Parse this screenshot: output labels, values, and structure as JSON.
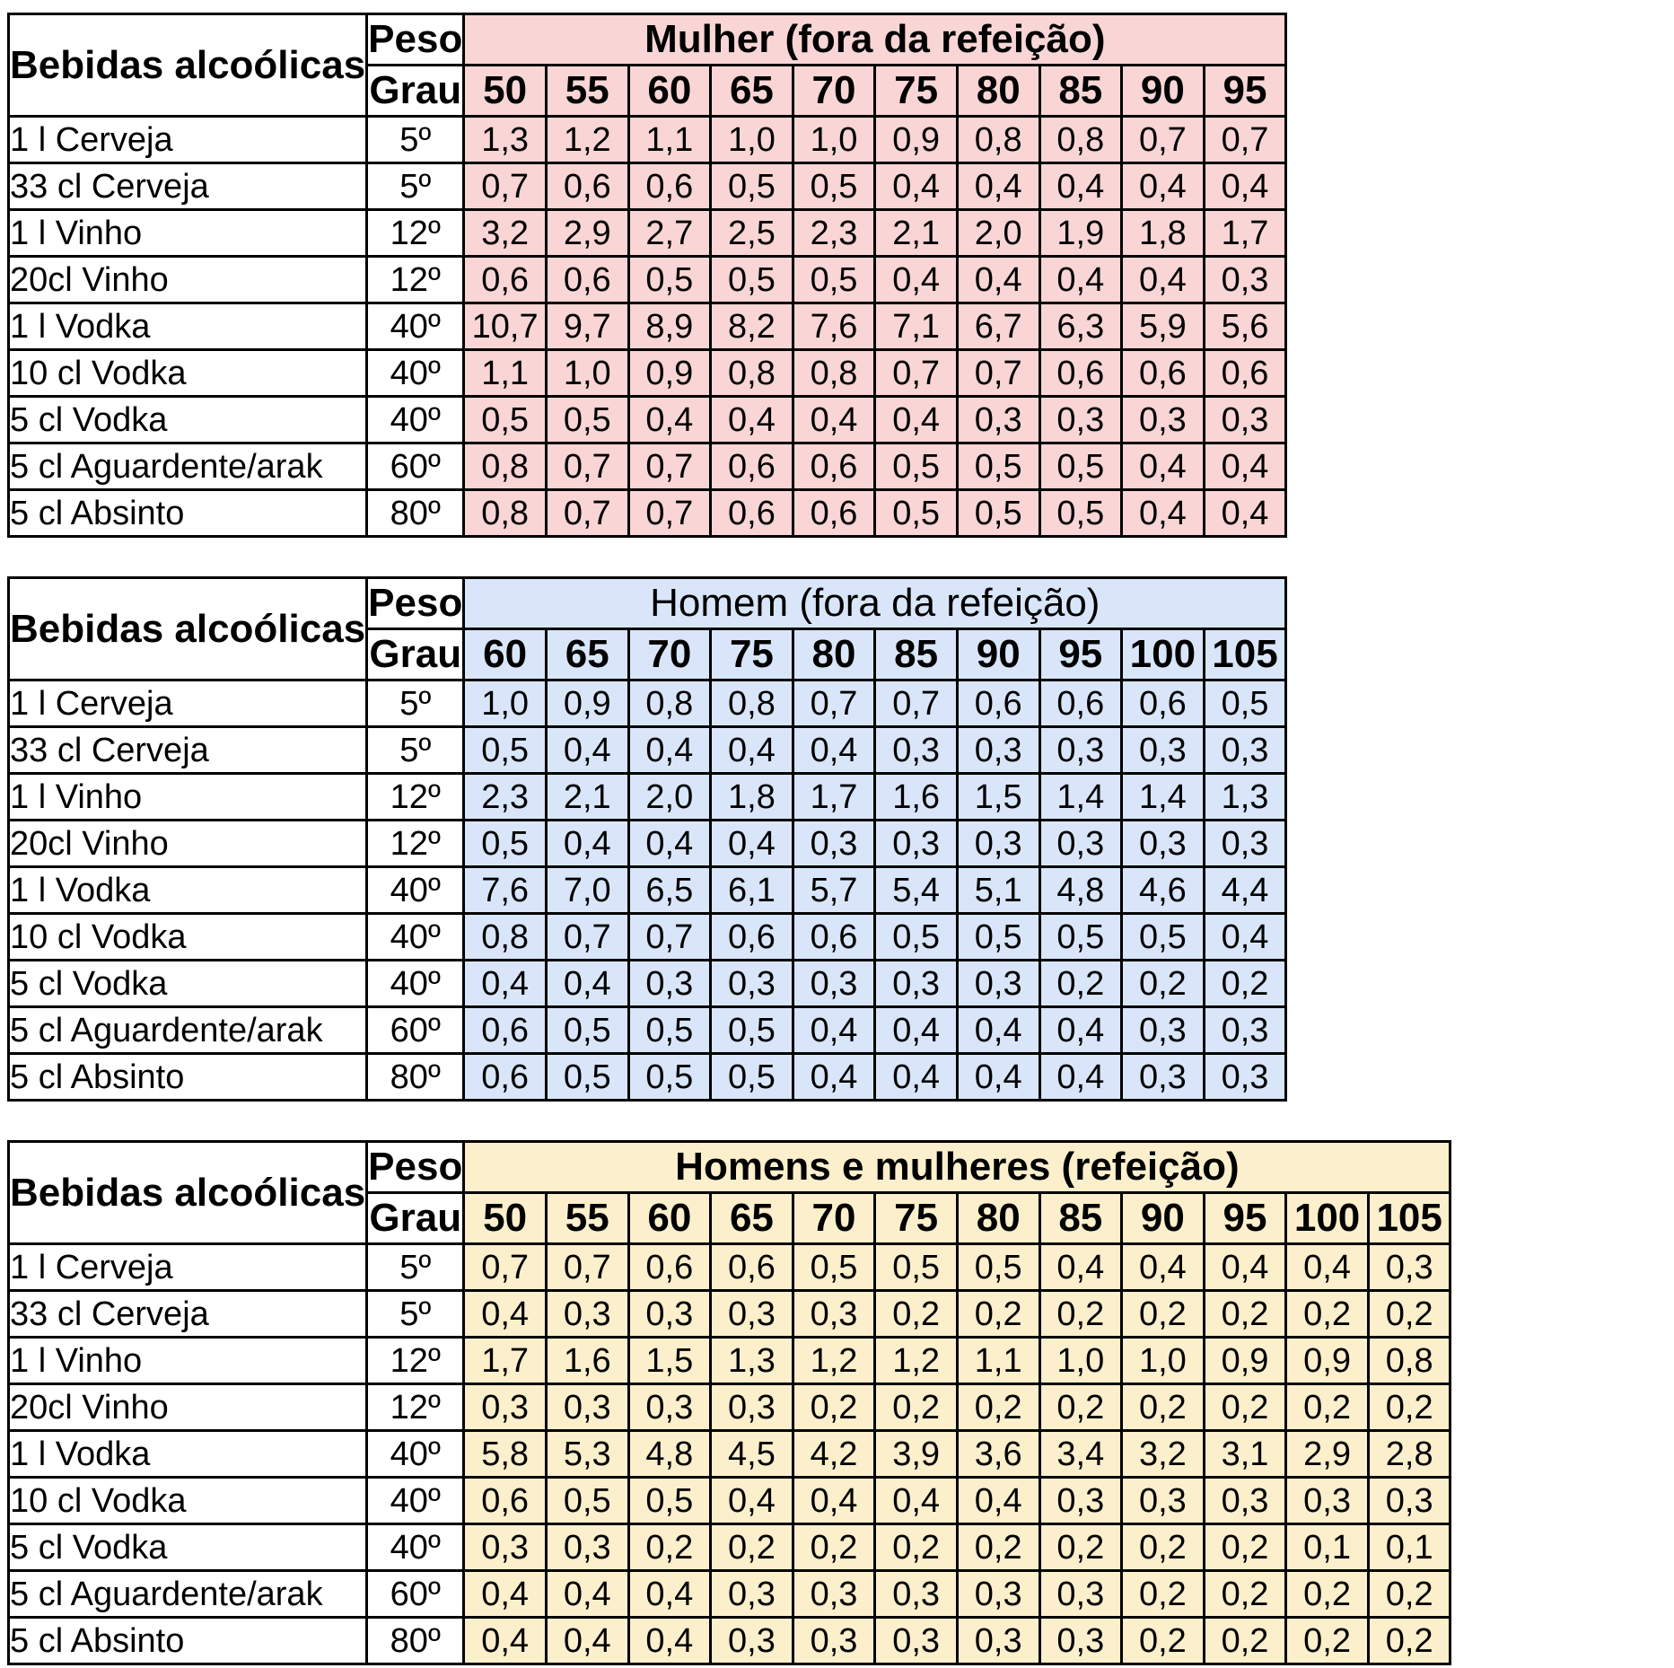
{
  "tables": [
    {
      "header_drink": "Bebidas alcoólicas",
      "header_peso": "Peso",
      "header_grau": "Grau",
      "title": "Mulher (fora da refeição)",
      "title_bold": true,
      "color": "#f9d5d5",
      "weights": [
        "50",
        "55",
        "60",
        "65",
        "70",
        "75",
        "80",
        "85",
        "90",
        "95"
      ],
      "rows": [
        {
          "drink": "1 l Cerveja",
          "deg": "5º",
          "values": [
            "1,3",
            "1,2",
            "1,1",
            "1,0",
            "1,0",
            "0,9",
            "0,8",
            "0,8",
            "0,7",
            "0,7"
          ]
        },
        {
          "drink": "33 cl Cerveja",
          "deg": "5º",
          "values": [
            "0,7",
            "0,6",
            "0,6",
            "0,5",
            "0,5",
            "0,4",
            "0,4",
            "0,4",
            "0,4",
            "0,4"
          ]
        },
        {
          "drink": "1 l Vinho",
          "deg": "12º",
          "values": [
            "3,2",
            "2,9",
            "2,7",
            "2,5",
            "2,3",
            "2,1",
            "2,0",
            "1,9",
            "1,8",
            "1,7"
          ]
        },
        {
          "drink": "20cl Vinho",
          "deg": "12º",
          "values": [
            "0,6",
            "0,6",
            "0,5",
            "0,5",
            "0,5",
            "0,4",
            "0,4",
            "0,4",
            "0,4",
            "0,3"
          ]
        },
        {
          "drink": "1 l Vodka",
          "deg": "40º",
          "values": [
            "10,7",
            "9,7",
            "8,9",
            "8,2",
            "7,6",
            "7,1",
            "6,7",
            "6,3",
            "5,9",
            "5,6"
          ]
        },
        {
          "drink": "10 cl Vodka",
          "deg": "40º",
          "values": [
            "1,1",
            "1,0",
            "0,9",
            "0,8",
            "0,8",
            "0,7",
            "0,7",
            "0,6",
            "0,6",
            "0,6"
          ]
        },
        {
          "drink": "5 cl Vodka",
          "deg": "40º",
          "values": [
            "0,5",
            "0,5",
            "0,4",
            "0,4",
            "0,4",
            "0,4",
            "0,3",
            "0,3",
            "0,3",
            "0,3"
          ]
        },
        {
          "drink": "5 cl Aguardente/arak",
          "deg": "60º",
          "values": [
            "0,8",
            "0,7",
            "0,7",
            "0,6",
            "0,6",
            "0,5",
            "0,5",
            "0,5",
            "0,4",
            "0,4"
          ]
        },
        {
          "drink": "5 cl Absinto",
          "deg": "80º",
          "values": [
            "0,8",
            "0,7",
            "0,7",
            "0,6",
            "0,6",
            "0,5",
            "0,5",
            "0,5",
            "0,4",
            "0,4"
          ]
        }
      ]
    },
    {
      "header_drink": "Bebidas alcoólicas",
      "header_peso": "Peso",
      "header_grau": "Grau",
      "title": "Homem (fora da refeição)",
      "title_bold": false,
      "color": "#d9e6fa",
      "weights": [
        "60",
        "65",
        "70",
        "75",
        "80",
        "85",
        "90",
        "95",
        "100",
        "105"
      ],
      "rows": [
        {
          "drink": "1 l Cerveja",
          "deg": "5º",
          "values": [
            "1,0",
            "0,9",
            "0,8",
            "0,8",
            "0,7",
            "0,7",
            "0,6",
            "0,6",
            "0,6",
            "0,5"
          ]
        },
        {
          "drink": "33 cl Cerveja",
          "deg": "5º",
          "values": [
            "0,5",
            "0,4",
            "0,4",
            "0,4",
            "0,4",
            "0,3",
            "0,3",
            "0,3",
            "0,3",
            "0,3"
          ]
        },
        {
          "drink": "1 l Vinho",
          "deg": "12º",
          "values": [
            "2,3",
            "2,1",
            "2,0",
            "1,8",
            "1,7",
            "1,6",
            "1,5",
            "1,4",
            "1,4",
            "1,3"
          ]
        },
        {
          "drink": "20cl Vinho",
          "deg": "12º",
          "values": [
            "0,5",
            "0,4",
            "0,4",
            "0,4",
            "0,3",
            "0,3",
            "0,3",
            "0,3",
            "0,3",
            "0,3"
          ]
        },
        {
          "drink": "1 l Vodka",
          "deg": "40º",
          "values": [
            "7,6",
            "7,0",
            "6,5",
            "6,1",
            "5,7",
            "5,4",
            "5,1",
            "4,8",
            "4,6",
            "4,4"
          ]
        },
        {
          "drink": "10 cl Vodka",
          "deg": "40º",
          "values": [
            "0,8",
            "0,7",
            "0,7",
            "0,6",
            "0,6",
            "0,5",
            "0,5",
            "0,5",
            "0,5",
            "0,4"
          ]
        },
        {
          "drink": "5 cl Vodka",
          "deg": "40º",
          "values": [
            "0,4",
            "0,4",
            "0,3",
            "0,3",
            "0,3",
            "0,3",
            "0,3",
            "0,2",
            "0,2",
            "0,2"
          ]
        },
        {
          "drink": "5 cl Aguardente/arak",
          "deg": "60º",
          "values": [
            "0,6",
            "0,5",
            "0,5",
            "0,5",
            "0,4",
            "0,4",
            "0,4",
            "0,4",
            "0,3",
            "0,3"
          ]
        },
        {
          "drink": "5 cl Absinto",
          "deg": "80º",
          "values": [
            "0,6",
            "0,5",
            "0,5",
            "0,5",
            "0,4",
            "0,4",
            "0,4",
            "0,4",
            "0,3",
            "0,3"
          ]
        }
      ]
    },
    {
      "header_drink": "Bebidas alcoólicas",
      "header_peso": "Peso",
      "header_grau": "Grau",
      "title": "Homens e mulheres (refeição)",
      "title_bold": true,
      "color": "#fcefcc",
      "weights": [
        "50",
        "55",
        "60",
        "65",
        "70",
        "75",
        "80",
        "85",
        "90",
        "95",
        "100",
        "105"
      ],
      "rows": [
        {
          "drink": "1 l Cerveja",
          "deg": "5º",
          "values": [
            "0,7",
            "0,7",
            "0,6",
            "0,6",
            "0,5",
            "0,5",
            "0,5",
            "0,4",
            "0,4",
            "0,4",
            "0,4",
            "0,3"
          ]
        },
        {
          "drink": "33 cl Cerveja",
          "deg": "5º",
          "values": [
            "0,4",
            "0,3",
            "0,3",
            "0,3",
            "0,3",
            "0,2",
            "0,2",
            "0,2",
            "0,2",
            "0,2",
            "0,2",
            "0,2"
          ]
        },
        {
          "drink": "1 l Vinho",
          "deg": "12º",
          "values": [
            "1,7",
            "1,6",
            "1,5",
            "1,3",
            "1,2",
            "1,2",
            "1,1",
            "1,0",
            "1,0",
            "0,9",
            "0,9",
            "0,8"
          ]
        },
        {
          "drink": "20cl Vinho",
          "deg": "12º",
          "values": [
            "0,3",
            "0,3",
            "0,3",
            "0,3",
            "0,2",
            "0,2",
            "0,2",
            "0,2",
            "0,2",
            "0,2",
            "0,2",
            "0,2"
          ]
        },
        {
          "drink": "1 l Vodka",
          "deg": "40º",
          "values": [
            "5,8",
            "5,3",
            "4,8",
            "4,5",
            "4,2",
            "3,9",
            "3,6",
            "3,4",
            "3,2",
            "3,1",
            "2,9",
            "2,8"
          ]
        },
        {
          "drink": "10 cl Vodka",
          "deg": "40º",
          "values": [
            "0,6",
            "0,5",
            "0,5",
            "0,4",
            "0,4",
            "0,4",
            "0,4",
            "0,3",
            "0,3",
            "0,3",
            "0,3",
            "0,3"
          ]
        },
        {
          "drink": "5 cl Vodka",
          "deg": "40º",
          "values": [
            "0,3",
            "0,3",
            "0,2",
            "0,2",
            "0,2",
            "0,2",
            "0,2",
            "0,2",
            "0,2",
            "0,2",
            "0,1",
            "0,1"
          ]
        },
        {
          "drink": "5 cl Aguardente/arak",
          "deg": "60º",
          "values": [
            "0,4",
            "0,4",
            "0,4",
            "0,3",
            "0,3",
            "0,3",
            "0,3",
            "0,3",
            "0,2",
            "0,2",
            "0,2",
            "0,2"
          ]
        },
        {
          "drink": "5 cl Absinto",
          "deg": "80º",
          "values": [
            "0,4",
            "0,4",
            "0,4",
            "0,3",
            "0,3",
            "0,3",
            "0,3",
            "0,3",
            "0,2",
            "0,2",
            "0,2",
            "0,2"
          ]
        }
      ]
    }
  ]
}
